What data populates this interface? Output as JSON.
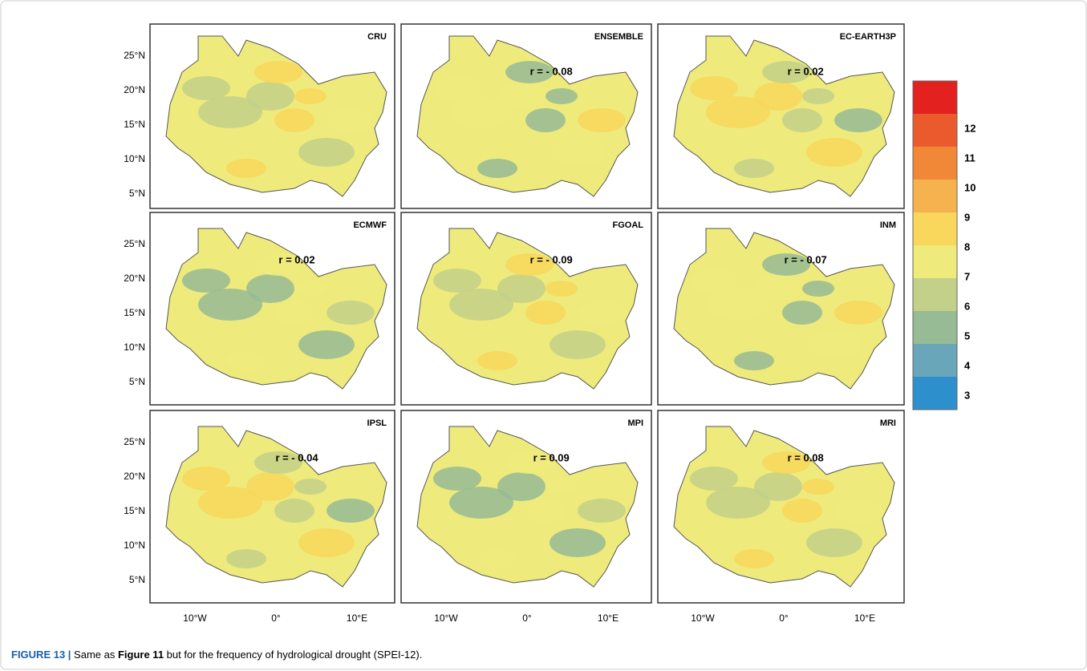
{
  "figure": {
    "panels": [
      {
        "title": "CRU"
      },
      {
        "title": "ENSEMBLE",
        "r": "r = - 0.08"
      },
      {
        "title": "EC-EARTH3P",
        "r": "r = 0.02"
      },
      {
        "title": "ECMWF",
        "r": "r = 0.02"
      },
      {
        "title": "FGOAL",
        "r": "r = - 0.09"
      },
      {
        "title": "INM",
        "r": "r = - 0.07"
      },
      {
        "title": "IPSL",
        "r": "r = - 0.04"
      },
      {
        "title": "MPI",
        "r": "r = 0.09"
      },
      {
        "title": "MRI",
        "r": "r = 0.08"
      }
    ],
    "lat_labels": [
      "25°N",
      "20°N",
      "15°N",
      "10°N",
      "5°N"
    ],
    "lon_labels": [
      "10°W",
      "0°",
      "10°E"
    ],
    "colorbar": {
      "labels": [
        "12",
        "11",
        "10",
        "9",
        "8",
        "7",
        "6",
        "5",
        "4",
        "3"
      ],
      "colors": [
        "#e3221f",
        "#ea5a2c",
        "#f08838",
        "#f6b24e",
        "#f8d75c",
        "#eeeb7c",
        "#c3d08a",
        "#97bb95",
        "#6aa6b9",
        "#2d8fcb"
      ]
    },
    "caption": {
      "label": "FIGURE 13 |",
      "text1": " Same as ",
      "ref": "Figure 11",
      "text2": " but for the frequency of hydrological drought (SPEI-12)."
    }
  }
}
